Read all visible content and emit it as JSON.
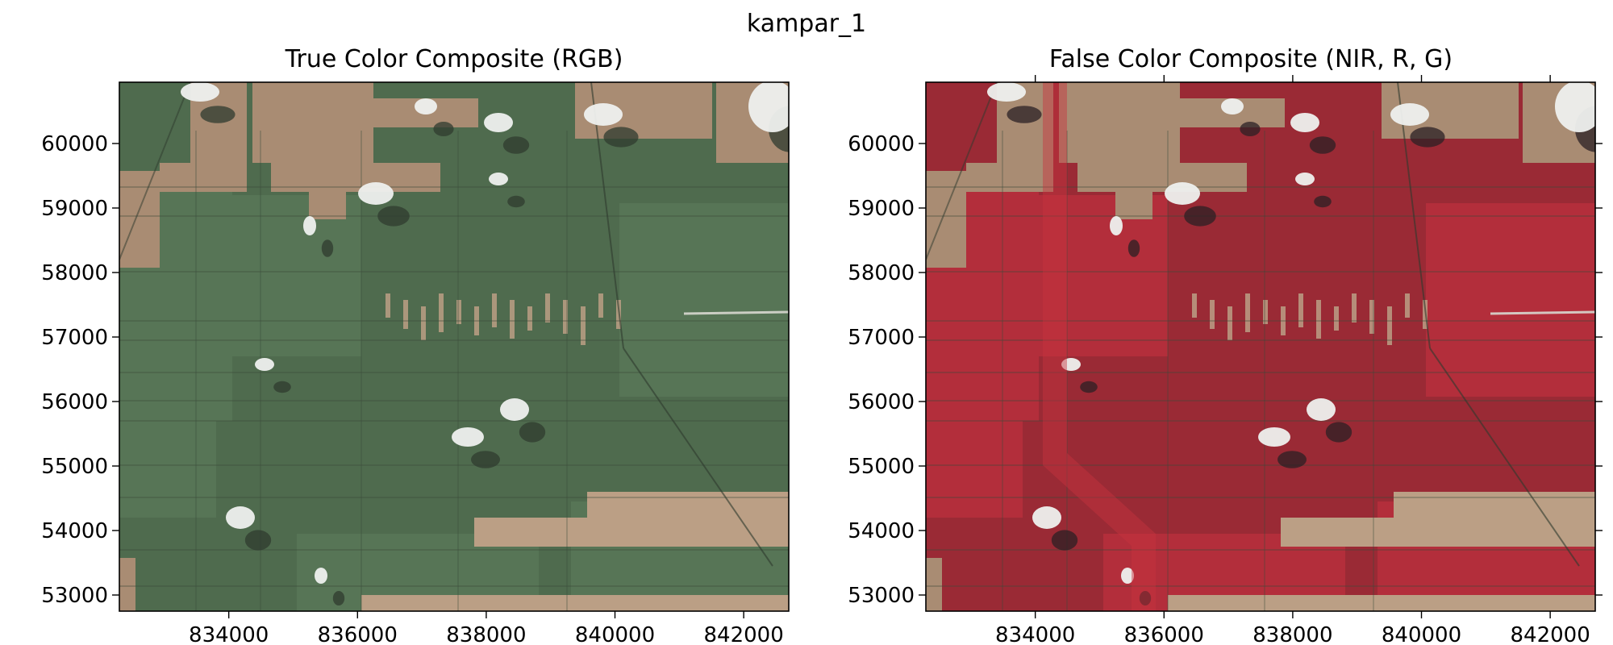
{
  "figure": {
    "title": "kampar_1"
  },
  "panels": [
    {
      "title": "True Color Composite (RGB)",
      "mode": "rgb",
      "x_ticks": [
        "834000",
        "836000",
        "838000",
        "840000",
        "842000"
      ],
      "y_ticks": [
        "60000",
        "59000",
        "58000",
        "57000",
        "56000",
        "55000",
        "54000",
        "53000"
      ],
      "colors": {
        "forest": "#4f6b4e",
        "forest_light": "#5f7d5c",
        "bare_field": "#a98c73",
        "bare_field_light": "#bb9f85",
        "cloud": "#eef0ee",
        "shadow": "#2f3b2f"
      }
    },
    {
      "title": "False Color Composite (NIR, R, G)",
      "mode": "false",
      "x_ticks": [
        "834000",
        "836000",
        "838000",
        "840000",
        "842000"
      ],
      "y_ticks": [
        "60000",
        "59000",
        "58000",
        "57000",
        "56000",
        "55000",
        "54000",
        "53000"
      ],
      "colors": {
        "forest": "#9a2a35",
        "forest_light": "#c8323f",
        "bare_field": "#a98c73",
        "bare_field_light": "#bb9f85",
        "cloud": "#eef0ee",
        "shadow": "#2b2024"
      }
    }
  ]
}
